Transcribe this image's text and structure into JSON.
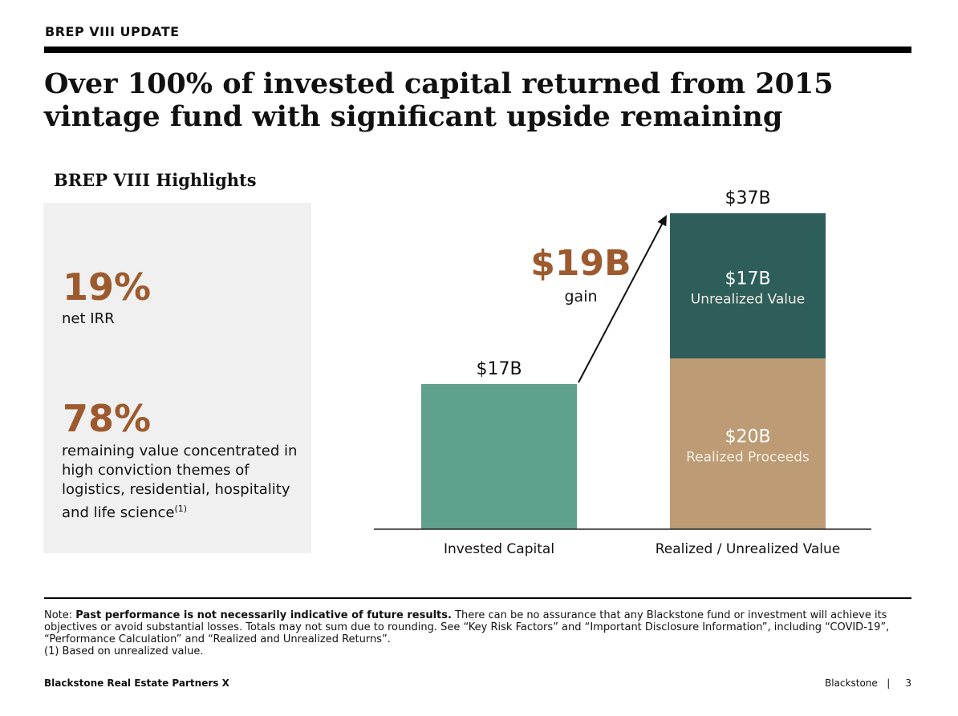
{
  "header": {
    "section_label": "BREP VIII UPDATE",
    "title": "Over 100% of invested capital returned from 2015 vintage fund with significant upside remaining"
  },
  "highlights": {
    "heading": "BREP VIII Highlights",
    "stat1": {
      "value": "19%",
      "text": "net IRR"
    },
    "stat2": {
      "value": "78%",
      "text": "remaining value concentrated in high conviction themes of logistics, residential, hospitality and life science",
      "footnote_ref": "(1)"
    }
  },
  "chart_data": {
    "type": "bar",
    "categories": [
      "Invested Capital",
      "Realized / Unrealized Value"
    ],
    "series": [
      {
        "name": "Realized Proceeds",
        "values": [
          null,
          20
        ],
        "label": "$20B",
        "color": "#bd9b74"
      },
      {
        "name": "Unrealized Value",
        "values": [
          null,
          17
        ],
        "label": "$17B",
        "color": "#2e5e5a"
      },
      {
        "name": "",
        "values": [
          17,
          null
        ],
        "label": "",
        "color": "#5fa18c"
      }
    ],
    "totals": [
      "$17B",
      "$37B"
    ],
    "gain": {
      "value": "$19B",
      "label": "gain"
    },
    "ylim": [
      0,
      37
    ],
    "colors": {
      "gain": "#9c5a2e",
      "label_light": "#ffffff",
      "label_light_sub": "#f3eee4"
    }
  },
  "footer": {
    "note_prefix": "Note: ",
    "note_bold": "Past performance is not necessarily indicative of future results.",
    "note_rest": " There can be no assurance that any Blackstone fund or investment will achieve its objectives or avoid substantial losses. Totals may not sum due to rounding. See “Key Risk Factors” and “Important Disclosure Information”, including “COVID-19”, “Performance Calculation” and “Realized and Unrealized Returns”.",
    "footnote": "(1)  Based on unrealized value.",
    "fund_name": "Blackstone Real Estate Partners X",
    "brand": "Blackstone",
    "separator": "|",
    "page_number": "3"
  }
}
